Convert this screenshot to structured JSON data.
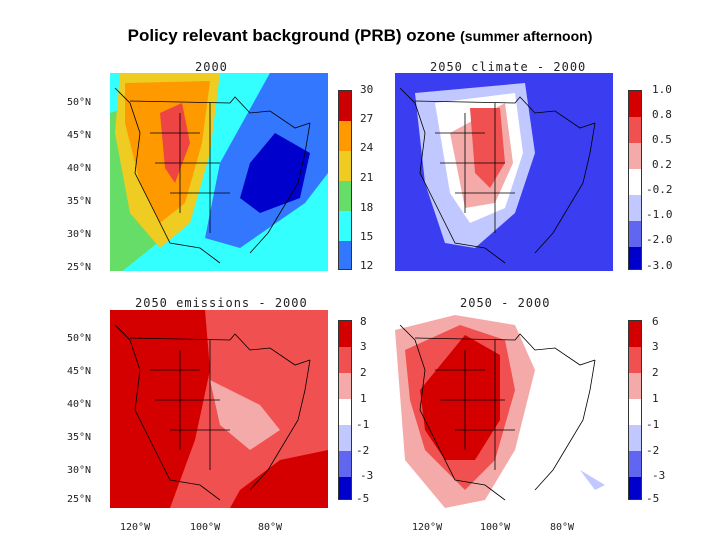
{
  "title": {
    "main": "Policy relevant background (PRB) ozone",
    "sub": "(summer afternoon)"
  },
  "colors": {
    "p1": [
      "#cc0000",
      "#ee4444",
      "#ff9900",
      "#eecc22",
      "#66dd66",
      "#33ffff",
      "#3377ff",
      "#0000cc"
    ],
    "diverging": [
      "#d40000",
      "#f05050",
      "#f5aaaa",
      "#ffffff",
      "#c0c8ff",
      "#6066f0",
      "#0000cc"
    ]
  },
  "panels": [
    {
      "title": "2000",
      "colorbar": [
        "30",
        "27",
        "24",
        "21",
        "18",
        "15",
        "12"
      ]
    },
    {
      "title": "2050 climate - 2000",
      "colorbar": [
        "1.0",
        "0.8",
        "0.5",
        "0.2",
        "-0.2",
        "-1.0",
        "-2.0",
        "-3.0"
      ]
    },
    {
      "title": "2050 emissions - 2000",
      "colorbar": [
        "8",
        "3",
        "2",
        "1",
        "-1",
        "-2",
        "-3",
        "-5"
      ]
    },
    {
      "title": "2050 - 2000",
      "colorbar": [
        "6",
        "3",
        "2",
        "1",
        "-1",
        "-2",
        "-3",
        "-5"
      ]
    }
  ],
  "lat_labels": [
    "50°N",
    "45°N",
    "40°N",
    "35°N",
    "30°N",
    "25°N"
  ],
  "lon_labels": [
    "120°W",
    "100°W",
    "80°W"
  ]
}
